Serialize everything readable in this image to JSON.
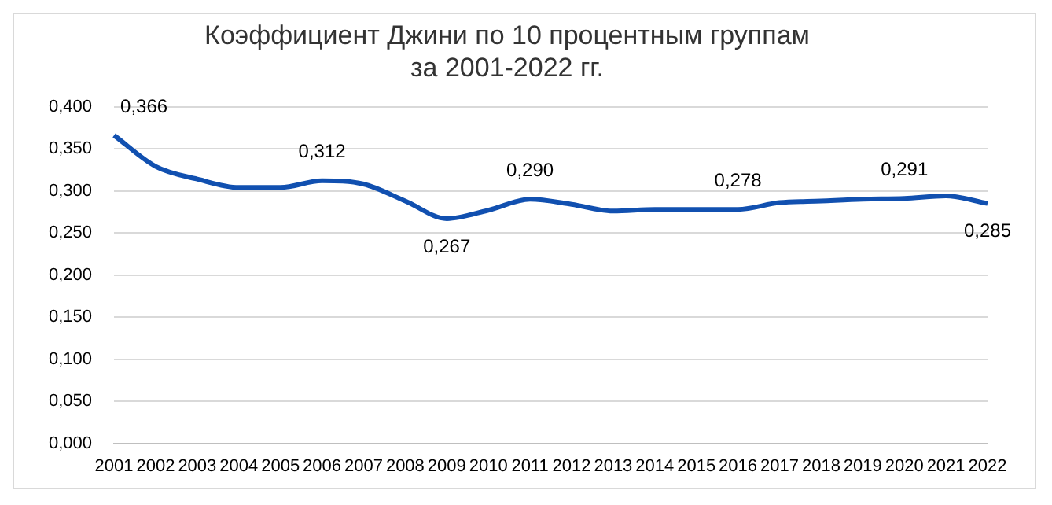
{
  "chart_data": {
    "type": "line",
    "title": [
      "Коэффициент Джини по 10 процентным группам",
      "за 2001-2022 гг."
    ],
    "categories": [
      "2001",
      "2002",
      "2003",
      "2004",
      "2005",
      "2006",
      "2007",
      "2008",
      "2009",
      "2010",
      "2011",
      "2012",
      "2013",
      "2014",
      "2015",
      "2016",
      "2017",
      "2018",
      "2019",
      "2020",
      "2021",
      "2022"
    ],
    "series": [
      {
        "color": "#1150b0",
        "values": [
          0.366,
          0.329,
          0.314,
          0.304,
          0.304,
          0.312,
          0.308,
          0.288,
          0.267,
          0.277,
          0.29,
          0.284,
          0.276,
          0.278,
          0.278,
          0.278,
          0.286,
          0.288,
          0.29,
          0.291,
          0.294,
          0.285
        ],
        "value_labels": [
          "0,366",
          null,
          null,
          null,
          null,
          "0,312",
          null,
          null,
          "0,267",
          null,
          "0,290",
          null,
          null,
          null,
          null,
          "0,278",
          null,
          null,
          null,
          "0,291",
          null,
          "0,285"
        ]
      }
    ],
    "ylim": [
      0,
      0.4
    ],
    "yticks": [
      {
        "value": 0,
        "label": "0,000"
      },
      {
        "value": 0.05,
        "label": "0,050"
      },
      {
        "value": 0.1,
        "label": "0,100"
      },
      {
        "value": 0.15,
        "label": "0,150"
      },
      {
        "value": 0.2,
        "label": "0,200"
      },
      {
        "value": 0.25,
        "label": "0,250"
      },
      {
        "value": 0.3,
        "label": "0,300"
      },
      {
        "value": 0.35,
        "label": "0,350"
      },
      {
        "value": 0.4,
        "label": "0,400"
      }
    ],
    "grid": "y",
    "legend": false,
    "marker": "none",
    "line_style": "solid"
  }
}
